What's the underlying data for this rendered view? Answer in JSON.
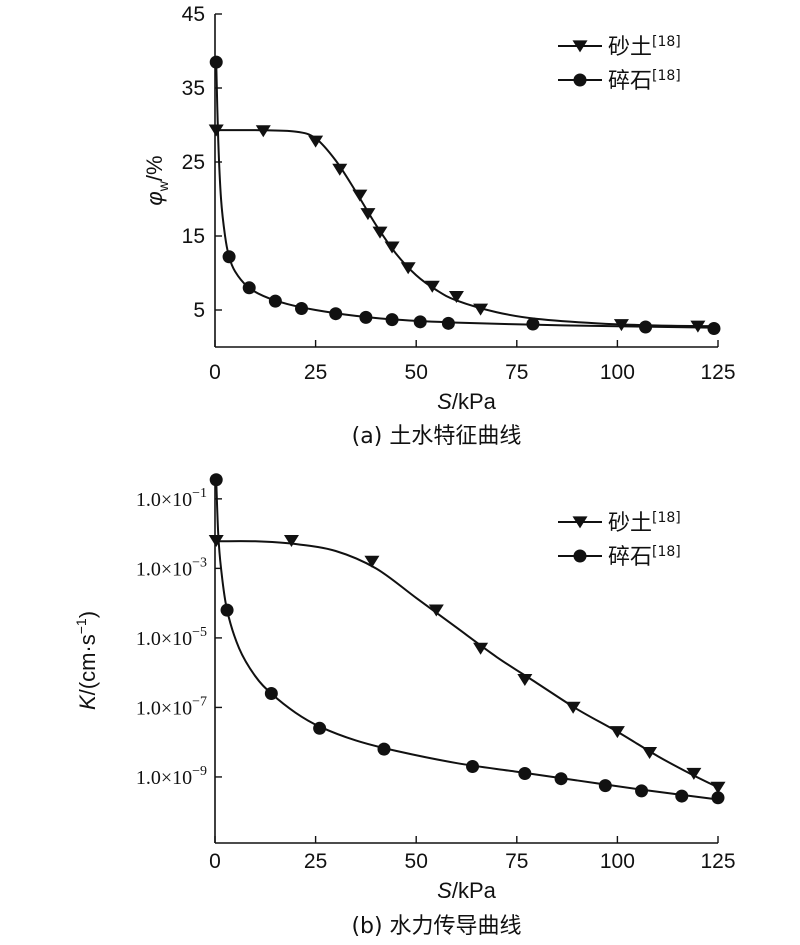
{
  "chart_data": [
    {
      "type": "line",
      "panel": "a",
      "caption": "(a) 土水特征曲线",
      "xlabel_italic": "S",
      "xlabel_rest": "/kPa",
      "ylabel_italic": "φ",
      "ylabel_sub": "w",
      "ylabel_rest": "/%",
      "xlim": [
        0,
        125
      ],
      "ylim": [
        0,
        45
      ],
      "xticks": [
        0,
        25,
        50,
        75,
        100,
        125
      ],
      "yticks": [
        5,
        15,
        25,
        35,
        45
      ],
      "legend_position": "top-right",
      "series": [
        {
          "name": "砂土",
          "ref": "[18]",
          "marker": "triangle-down",
          "points": [
            [
              0.3,
              29.3
            ],
            [
              12,
              29.2
            ],
            [
              25,
              27.8
            ],
            [
              31,
              24
            ],
            [
              36,
              20.5
            ],
            [
              38,
              18
            ],
            [
              41,
              15.5
            ],
            [
              44,
              13.5
            ],
            [
              48,
              10.7
            ],
            [
              54,
              8.2
            ],
            [
              60,
              6.8
            ],
            [
              66,
              5.1
            ],
            [
              101,
              3.0
            ],
            [
              120,
              2.8
            ]
          ],
          "curve": [
            [
              0.3,
              29.3
            ],
            [
              10,
              29.3
            ],
            [
              20,
              29.1
            ],
            [
              25,
              28.2
            ],
            [
              30,
              25.2
            ],
            [
              35,
              21
            ],
            [
              40,
              16.5
            ],
            [
              45,
              12.6
            ],
            [
              50,
              9.7
            ],
            [
              55,
              7.7
            ],
            [
              60,
              6.3
            ],
            [
              70,
              4.7
            ],
            [
              80,
              3.8
            ],
            [
              95,
              3.2
            ],
            [
              110,
              2.9
            ],
            [
              125,
              2.8
            ]
          ]
        },
        {
          "name": "碎石",
          "ref": "[18]",
          "marker": "circle",
          "points": [
            [
              0.3,
              38.5
            ],
            [
              3.5,
              12.2
            ],
            [
              8.5,
              8.0
            ],
            [
              15,
              6.2
            ],
            [
              21.5,
              5.2
            ],
            [
              30,
              4.5
            ],
            [
              37.5,
              4.0
            ],
            [
              44,
              3.7
            ],
            [
              51,
              3.4
            ],
            [
              58,
              3.2
            ],
            [
              79,
              3.1
            ],
            [
              107,
              2.7
            ],
            [
              124,
              2.5
            ]
          ],
          "curve": [
            [
              0.3,
              38.5
            ],
            [
              0.8,
              28
            ],
            [
              1.5,
              20
            ],
            [
              2.5,
              15
            ],
            [
              3.5,
              12.2
            ],
            [
              5,
              10.2
            ],
            [
              8,
              8.2
            ],
            [
              12,
              6.9
            ],
            [
              18,
              5.8
            ],
            [
              25,
              5.0
            ],
            [
              35,
              4.2
            ],
            [
              45,
              3.7
            ],
            [
              60,
              3.3
            ],
            [
              80,
              3.0
            ],
            [
              100,
              2.8
            ],
            [
              125,
              2.6
            ]
          ]
        }
      ]
    },
    {
      "type": "line",
      "panel": "b",
      "caption": "(b) 水力传导曲线",
      "xlabel_italic": "S",
      "xlabel_rest": "/kPa",
      "ylabel_italic": "K",
      "ylabel_rest": "/(cm·s",
      "ylabel_exp": "−1",
      "ylabel_close": ")",
      "yscale": "log",
      "xlim": [
        0,
        125
      ],
      "ylim_log10": [
        -10.9,
        -0.4
      ],
      "xticks": [
        0,
        25,
        50,
        75,
        100,
        125
      ],
      "yticks": [
        {
          "mant": "1.0×10",
          "exp": "−1",
          "log10": -1
        },
        {
          "mant": "1.0×10",
          "exp": "−3",
          "log10": -3
        },
        {
          "mant": "1.0×10",
          "exp": "−5",
          "log10": -5
        },
        {
          "mant": "1.0×10",
          "exp": "−7",
          "log10": -7
        },
        {
          "mant": "1.0×10",
          "exp": "−9",
          "log10": -9
        }
      ],
      "legend_position": "top-right",
      "series": [
        {
          "name": "砂土",
          "ref": "[18]",
          "marker": "triangle-down",
          "points_log10": [
            [
              0.3,
              -2.2
            ],
            [
              19,
              -2.2
            ],
            [
              39,
              -2.8
            ],
            [
              55,
              -4.2
            ],
            [
              66,
              -5.3
            ],
            [
              77,
              -6.2
            ],
            [
              89,
              -7.0
            ],
            [
              100,
              -7.7
            ],
            [
              108,
              -8.3
            ],
            [
              119,
              -8.9
            ],
            [
              125,
              -9.3
            ]
          ],
          "curve_log10": [
            [
              0.3,
              -2.22
            ],
            [
              10,
              -2.22
            ],
            [
              20,
              -2.3
            ],
            [
              30,
              -2.5
            ],
            [
              40,
              -3.0
            ],
            [
              50,
              -3.85
            ],
            [
              60,
              -4.7
            ],
            [
              70,
              -5.55
            ],
            [
              80,
              -6.3
            ],
            [
              90,
              -7.05
            ],
            [
              100,
              -7.7
            ],
            [
              110,
              -8.4
            ],
            [
              118,
              -8.9
            ],
            [
              125,
              -9.3
            ]
          ]
        },
        {
          "name": "碎石",
          "ref": "[18]",
          "marker": "circle",
          "points_log10": [
            [
              0.3,
              -0.45
            ],
            [
              3,
              -4.2
            ],
            [
              14,
              -6.6
            ],
            [
              26,
              -7.6
            ],
            [
              42,
              -8.2
            ],
            [
              64,
              -8.7
            ],
            [
              77,
              -8.9
            ],
            [
              86,
              -9.05
            ],
            [
              97,
              -9.25
            ],
            [
              106,
              -9.4
            ],
            [
              116,
              -9.55
            ],
            [
              125,
              -9.6
            ]
          ],
          "curve_log10": [
            [
              0.3,
              -0.45
            ],
            [
              0.8,
              -2.0
            ],
            [
              1.5,
              -3.0
            ],
            [
              3,
              -4.2
            ],
            [
              6,
              -5.3
            ],
            [
              10,
              -6.1
            ],
            [
              14,
              -6.6
            ],
            [
              20,
              -7.15
            ],
            [
              26,
              -7.55
            ],
            [
              35,
              -7.95
            ],
            [
              45,
              -8.25
            ],
            [
              60,
              -8.6
            ],
            [
              75,
              -8.85
            ],
            [
              90,
              -9.1
            ],
            [
              105,
              -9.35
            ],
            [
              125,
              -9.65
            ]
          ]
        }
      ]
    }
  ]
}
